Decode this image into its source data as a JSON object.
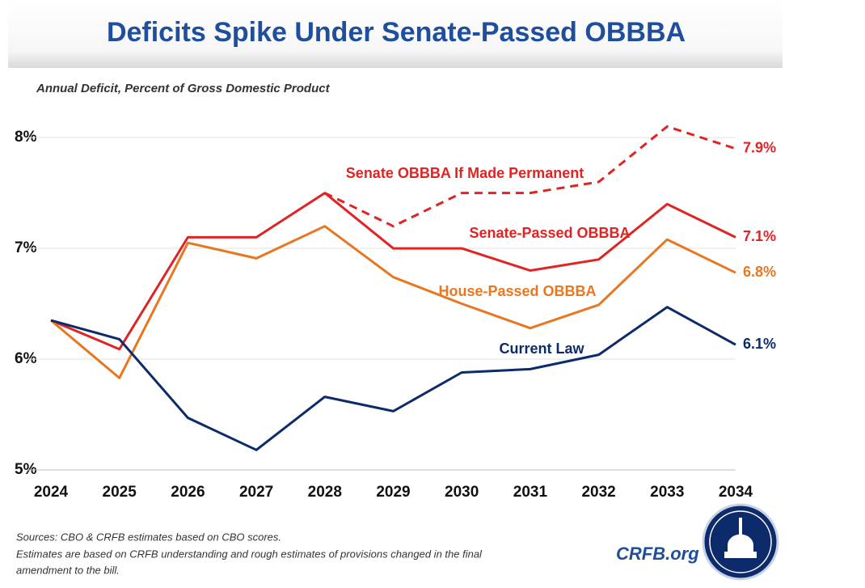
{
  "chart_data": {
    "type": "line",
    "title": "Deficits Spike Under Senate-Passed OBBBA",
    "subtitle": "Annual Deficit, Percent of Gross Domestic Product",
    "categories": [
      "2024",
      "2025",
      "2026",
      "2027",
      "2028",
      "2029",
      "2030",
      "2031",
      "2032",
      "2033",
      "2034"
    ],
    "series": [
      {
        "name": "Senate OBBBA If Made Permanent",
        "color": "#e02424",
        "dashed": true,
        "values": [
          null,
          null,
          null,
          null,
          7.5,
          7.2,
          7.5,
          7.5,
          7.6,
          8.1,
          7.9
        ],
        "value_labels": [
          null,
          null,
          null,
          null,
          null,
          null,
          null,
          null,
          null,
          null,
          "7.9%"
        ]
      },
      {
        "name": "Senate-Passed OBBBA",
        "color": "#e02424",
        "values": [
          6.35,
          6.09,
          7.1,
          7.1,
          7.5,
          7.0,
          7.0,
          6.8,
          6.9,
          7.4,
          7.1
        ],
        "value_labels": [
          null,
          null,
          null,
          null,
          null,
          null,
          null,
          null,
          null,
          null,
          "7.1%"
        ]
      },
      {
        "name": "House-Passed OBBBA",
        "color": "#e87722",
        "values": [
          6.35,
          5.83,
          7.05,
          6.91,
          7.2,
          6.74,
          6.5,
          6.28,
          6.49,
          7.08,
          6.78
        ],
        "value_labels": [
          null,
          null,
          null,
          null,
          null,
          null,
          null,
          null,
          null,
          null,
          "6.8%"
        ]
      },
      {
        "name": "Current Law",
        "color": "#0d2b6b",
        "values": [
          6.35,
          6.18,
          5.47,
          5.18,
          5.66,
          5.53,
          5.88,
          5.91,
          6.04,
          6.47,
          6.13
        ],
        "value_labels": [
          null,
          null,
          null,
          null,
          null,
          null,
          null,
          null,
          null,
          null,
          "6.1%"
        ]
      }
    ],
    "ylim": [
      5,
      8.3
    ],
    "yticks": [
      {
        "value": 5,
        "label": "5%"
      },
      {
        "value": 6,
        "label": "6%"
      },
      {
        "value": 7,
        "label": "7%"
      },
      {
        "value": 8,
        "label": "8%"
      }
    ],
    "grid": true,
    "sources": [
      "Sources: CBO & CRFB estimates based on CBO scores.",
      "Estimates are based on CRFB understanding and rough estimates of provisions changed in the final",
      "amendment to the bill."
    ],
    "brand": "CRFB.org"
  }
}
